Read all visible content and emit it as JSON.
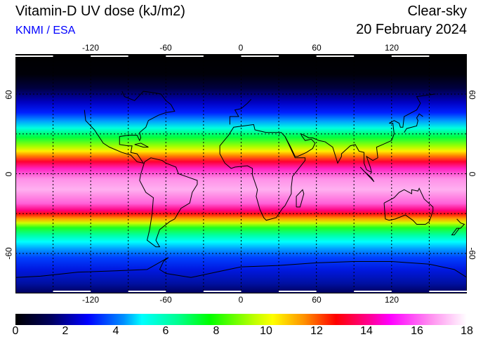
{
  "header": {
    "title": "Vitamin-D UV dose (kJ/m2)",
    "credit": "KNMI / ESA",
    "sky_condition": "Clear-sky",
    "date": "20 February 2024"
  },
  "map": {
    "longitude_ticks": [
      "-120",
      "-60",
      "0",
      "60",
      "120"
    ],
    "latitude_ticks": [
      "60",
      "0",
      "-60"
    ]
  },
  "colorbar": {
    "labels": [
      "0",
      "2",
      "4",
      "6",
      "8",
      "10",
      "12",
      "14",
      "16",
      "18"
    ],
    "min": 0,
    "max": 18,
    "unit": "kJ/m2"
  }
}
